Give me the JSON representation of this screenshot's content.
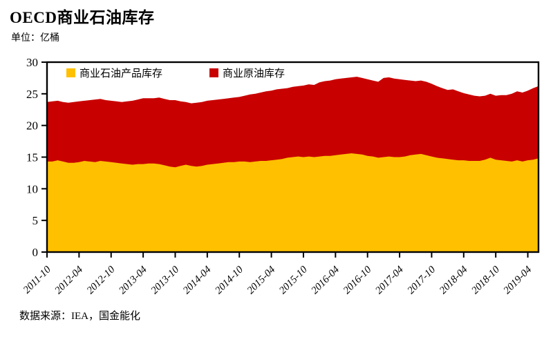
{
  "page": {
    "title": "OECD商业石油库存",
    "unit_label": "单位：亿桶",
    "source": "数据来源：IEA，国金能化"
  },
  "colors": {
    "products": "#FFC000",
    "crude": "#C80000",
    "axis": "#000000",
    "text": "#000000"
  },
  "chart_data": {
    "type": "area",
    "stacked": true,
    "title": "OECD商业石油库存",
    "unit": "亿桶",
    "ylabel": "",
    "xlabel": "",
    "ylim": [
      0,
      30
    ],
    "ytick_step": 5,
    "xtick_every": 6,
    "grid": false,
    "legend_position": "top-inside",
    "x": [
      "2011-10",
      "2011-11",
      "2011-12",
      "2012-01",
      "2012-02",
      "2012-03",
      "2012-04",
      "2012-05",
      "2012-06",
      "2012-07",
      "2012-08",
      "2012-09",
      "2012-10",
      "2012-11",
      "2012-12",
      "2013-01",
      "2013-02",
      "2013-03",
      "2013-04",
      "2013-05",
      "2013-06",
      "2013-07",
      "2013-08",
      "2013-09",
      "2013-10",
      "2013-11",
      "2013-12",
      "2014-01",
      "2014-02",
      "2014-03",
      "2014-04",
      "2014-05",
      "2014-06",
      "2014-07",
      "2014-08",
      "2014-09",
      "2014-10",
      "2014-11",
      "2014-12",
      "2015-01",
      "2015-02",
      "2015-03",
      "2015-04",
      "2015-05",
      "2015-06",
      "2015-07",
      "2015-08",
      "2015-09",
      "2015-10",
      "2015-11",
      "2015-12",
      "2016-01",
      "2016-02",
      "2016-03",
      "2016-04",
      "2016-05",
      "2016-06",
      "2016-07",
      "2016-08",
      "2016-09",
      "2016-10",
      "2016-11",
      "2016-12",
      "2017-01",
      "2017-02",
      "2017-03",
      "2017-04",
      "2017-05",
      "2017-06",
      "2017-07",
      "2017-08",
      "2017-09",
      "2017-10",
      "2017-11",
      "2017-12",
      "2018-01",
      "2018-02",
      "2018-03",
      "2018-04",
      "2018-05",
      "2018-06",
      "2018-07",
      "2018-08",
      "2018-09",
      "2018-10",
      "2018-11",
      "2018-12",
      "2019-01",
      "2019-02",
      "2019-03",
      "2019-04",
      "2019-05",
      "2019-06"
    ],
    "series": [
      {
        "name": "商业石油产品库存",
        "color": "#FFC000",
        "values": [
          14.3,
          14.3,
          14.5,
          14.3,
          14.1,
          14.1,
          14.2,
          14.4,
          14.3,
          14.2,
          14.4,
          14.3,
          14.2,
          14.1,
          14.0,
          13.9,
          13.8,
          13.9,
          13.9,
          14.0,
          14.0,
          13.9,
          13.7,
          13.5,
          13.4,
          13.6,
          13.8,
          13.6,
          13.5,
          13.6,
          13.8,
          13.9,
          14.0,
          14.1,
          14.2,
          14.2,
          14.3,
          14.3,
          14.2,
          14.3,
          14.4,
          14.4,
          14.5,
          14.6,
          14.7,
          14.9,
          15.0,
          15.1,
          15.0,
          15.1,
          15.0,
          15.1,
          15.2,
          15.2,
          15.3,
          15.4,
          15.5,
          15.6,
          15.5,
          15.4,
          15.2,
          15.1,
          14.9,
          15.0,
          15.1,
          15.0,
          15.0,
          15.1,
          15.3,
          15.4,
          15.5,
          15.3,
          15.1,
          14.9,
          14.8,
          14.7,
          14.6,
          14.5,
          14.5,
          14.4,
          14.4,
          14.4,
          14.6,
          14.9,
          14.6,
          14.5,
          14.4,
          14.3,
          14.5,
          14.3,
          14.5,
          14.6,
          14.8
        ]
      },
      {
        "name": "商业原油库存",
        "color": "#C80000",
        "values": [
          9.4,
          9.5,
          9.4,
          9.4,
          9.5,
          9.6,
          9.6,
          9.5,
          9.7,
          9.9,
          9.8,
          9.7,
          9.7,
          9.7,
          9.7,
          9.9,
          10.1,
          10.2,
          10.4,
          10.3,
          10.3,
          10.5,
          10.5,
          10.5,
          10.6,
          10.2,
          9.9,
          9.9,
          10.1,
          10.1,
          10.1,
          10.1,
          10.1,
          10.1,
          10.1,
          10.2,
          10.2,
          10.4,
          10.7,
          10.7,
          10.8,
          11.0,
          11.0,
          11.1,
          11.1,
          11.0,
          11.1,
          11.1,
          11.3,
          11.4,
          11.4,
          11.7,
          11.8,
          11.9,
          12.0,
          12.0,
          12.0,
          12.0,
          12.2,
          12.1,
          12.1,
          12.0,
          12.0,
          12.5,
          12.5,
          12.4,
          12.3,
          12.1,
          11.8,
          11.6,
          11.6,
          11.6,
          11.5,
          11.3,
          11.1,
          10.9,
          11.1,
          10.9,
          10.6,
          10.5,
          10.3,
          10.2,
          10.1,
          10.1,
          10.1,
          10.3,
          10.4,
          10.7,
          10.9,
          10.9,
          11.0,
          11.3,
          11.4
        ]
      }
    ]
  }
}
